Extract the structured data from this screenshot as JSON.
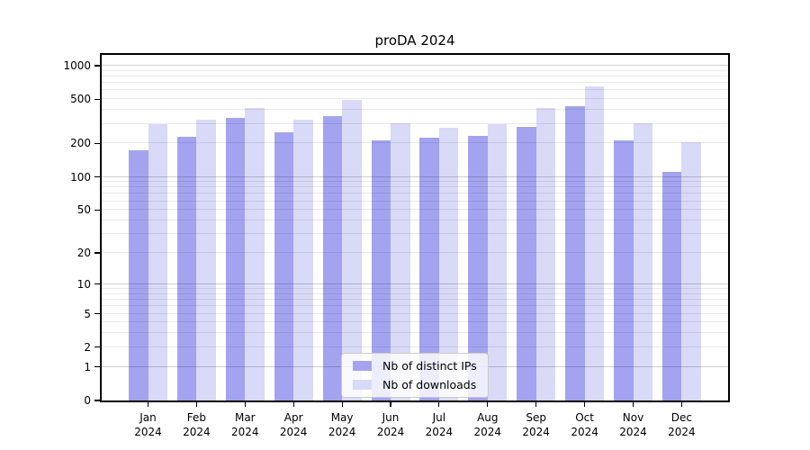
{
  "title": "proDA 2024",
  "chart_data": {
    "type": "bar",
    "title": "proDA 2024",
    "categories": [
      "Jan 2024",
      "Feb 2024",
      "Mar 2024",
      "Apr 2024",
      "May 2024",
      "Jun 2024",
      "Jul 2024",
      "Aug 2024",
      "Sep 2024",
      "Oct 2024",
      "Nov 2024",
      "Dec 2024"
    ],
    "series": [
      {
        "name": "Nb of distinct IPs",
        "color": "#a3a3f0",
        "values": [
          175,
          230,
          338,
          252,
          350,
          215,
          227,
          233,
          282,
          433,
          215,
          110
        ]
      },
      {
        "name": "Nb of downloads",
        "color": "#d9d9f8",
        "values": [
          300,
          330,
          415,
          330,
          495,
          302,
          275,
          300,
          415,
          655,
          305,
          205
        ]
      }
    ],
    "xlabel": "",
    "ylabel": "",
    "yscale": "log1p",
    "ylim": [
      0,
      1274
    ],
    "yticks": [
      0,
      1,
      2,
      5,
      10,
      20,
      50,
      100,
      200,
      500,
      1000
    ],
    "minor_gridline_values": [
      2,
      3,
      4,
      5,
      6,
      7,
      8,
      9,
      20,
      30,
      40,
      50,
      60,
      70,
      80,
      90,
      200,
      300,
      400,
      500,
      600,
      700,
      800,
      900
    ],
    "major_gridline_values": [
      1,
      10,
      100,
      1000
    ],
    "grid": true,
    "legend_position": "lower center inside"
  }
}
